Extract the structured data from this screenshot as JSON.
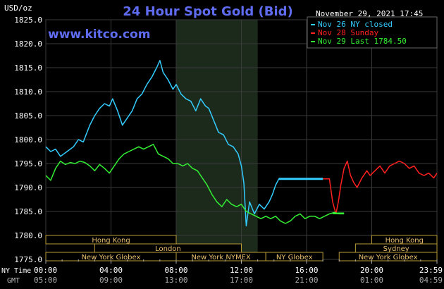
{
  "chart_data": {
    "type": "line",
    "title": "24 Hour Spot Gold (Bid)",
    "watermark": "www.kitco.com",
    "timestamp": "November 29, 2021 17:45",
    "ylabel": "USD/oz",
    "ylim": [
      1775.0,
      1825.0
    ],
    "y_ticks": [
      "1825.0",
      "1820.0",
      "1815.0",
      "1810.0",
      "1805.0",
      "1800.0",
      "1795.0",
      "1790.0",
      "1785.0",
      "1780.0",
      "1775.0"
    ],
    "x_row_labels": {
      "ny": "NY Time",
      "gmt": "GMT"
    },
    "x_ticks_ny": [
      "00:00",
      "04:00",
      "08:00",
      "12:00",
      "16:00",
      "20:00",
      "23:59"
    ],
    "x_ticks_gmt": [
      "05:00",
      "09:00",
      "13:00",
      "17:00",
      "21:00",
      "01:00",
      "04:59"
    ],
    "xlim_hours": [
      0,
      24
    ],
    "grid": true,
    "legend_position": "top-right",
    "shaded_session_hours": [
      8.0,
      13.0
    ],
    "series": [
      {
        "name": "Nov 26 NY closed",
        "color": "#33ccff",
        "points": [
          [
            0.0,
            1798.5
          ],
          [
            0.3,
            1797.5
          ],
          [
            0.6,
            1798.0
          ],
          [
            0.9,
            1796.5
          ],
          [
            1.3,
            1797.5
          ],
          [
            1.7,
            1798.5
          ],
          [
            2.0,
            1800.0
          ],
          [
            2.3,
            1799.5
          ],
          [
            2.7,
            1803.0
          ],
          [
            3.0,
            1805.0
          ],
          [
            3.3,
            1806.5
          ],
          [
            3.6,
            1807.5
          ],
          [
            3.9,
            1807.0
          ],
          [
            4.1,
            1808.5
          ],
          [
            4.4,
            1806.0
          ],
          [
            4.7,
            1803.0
          ],
          [
            5.0,
            1804.5
          ],
          [
            5.3,
            1806.0
          ],
          [
            5.6,
            1808.5
          ],
          [
            5.9,
            1809.5
          ],
          [
            6.2,
            1811.5
          ],
          [
            6.5,
            1813.0
          ],
          [
            6.8,
            1815.0
          ],
          [
            7.0,
            1816.5
          ],
          [
            7.2,
            1814.0
          ],
          [
            7.5,
            1812.5
          ],
          [
            7.8,
            1810.5
          ],
          [
            8.0,
            1811.5
          ],
          [
            8.3,
            1809.5
          ],
          [
            8.6,
            1808.5
          ],
          [
            8.9,
            1808.0
          ],
          [
            9.2,
            1806.0
          ],
          [
            9.5,
            1808.5
          ],
          [
            9.8,
            1807.0
          ],
          [
            10.0,
            1806.5
          ],
          [
            10.3,
            1804.0
          ],
          [
            10.6,
            1801.5
          ],
          [
            10.9,
            1801.0
          ],
          [
            11.2,
            1799.0
          ],
          [
            11.5,
            1798.5
          ],
          [
            11.8,
            1797.0
          ],
          [
            12.0,
            1794.5
          ],
          [
            12.15,
            1791.0
          ],
          [
            12.3,
            1782.0
          ],
          [
            12.5,
            1787.0
          ],
          [
            12.8,
            1784.5
          ],
          [
            13.1,
            1786.5
          ],
          [
            13.4,
            1785.5
          ],
          [
            13.7,
            1787.0
          ],
          [
            13.9,
            1788.5
          ],
          [
            14.1,
            1790.5
          ],
          [
            14.3,
            1791.8
          ],
          [
            17.0,
            1791.8
          ]
        ]
      },
      {
        "name": "Nov 28 Sunday",
        "color": "#ff2020",
        "points": [
          [
            17.0,
            1791.8
          ],
          [
            17.4,
            1791.8
          ],
          [
            17.6,
            1787.0
          ],
          [
            17.8,
            1784.5
          ],
          [
            17.95,
            1787.0
          ],
          [
            18.1,
            1790.5
          ],
          [
            18.3,
            1794.0
          ],
          [
            18.5,
            1795.5
          ],
          [
            18.7,
            1792.5
          ],
          [
            18.9,
            1791.0
          ],
          [
            19.1,
            1790.0
          ],
          [
            19.4,
            1792.0
          ],
          [
            19.7,
            1793.5
          ],
          [
            19.9,
            1792.5
          ],
          [
            20.2,
            1793.5
          ],
          [
            20.5,
            1794.5
          ],
          [
            20.8,
            1793.0
          ],
          [
            21.1,
            1794.5
          ],
          [
            21.4,
            1795.0
          ],
          [
            21.7,
            1795.5
          ],
          [
            22.0,
            1795.0
          ],
          [
            22.3,
            1794.0
          ],
          [
            22.6,
            1794.5
          ],
          [
            22.9,
            1793.0
          ],
          [
            23.2,
            1792.5
          ],
          [
            23.5,
            1793.0
          ],
          [
            23.8,
            1792.0
          ],
          [
            24.0,
            1793.0
          ]
        ]
      },
      {
        "name": "Nov 29 Last 1784.50",
        "color": "#33ee33",
        "points": [
          [
            0.0,
            1792.5
          ],
          [
            0.3,
            1791.5
          ],
          [
            0.6,
            1794.0
          ],
          [
            0.9,
            1795.5
          ],
          [
            1.2,
            1794.8
          ],
          [
            1.5,
            1795.2
          ],
          [
            1.8,
            1795.0
          ],
          [
            2.1,
            1795.5
          ],
          [
            2.4,
            1795.2
          ],
          [
            2.7,
            1794.5
          ],
          [
            3.0,
            1793.5
          ],
          [
            3.3,
            1794.8
          ],
          [
            3.6,
            1794.0
          ],
          [
            3.9,
            1793.0
          ],
          [
            4.2,
            1794.5
          ],
          [
            4.5,
            1796.0
          ],
          [
            4.8,
            1797.0
          ],
          [
            5.1,
            1797.5
          ],
          [
            5.4,
            1798.0
          ],
          [
            5.7,
            1798.5
          ],
          [
            6.0,
            1798.0
          ],
          [
            6.3,
            1798.5
          ],
          [
            6.6,
            1799.0
          ],
          [
            6.9,
            1797.0
          ],
          [
            7.2,
            1796.5
          ],
          [
            7.5,
            1796.0
          ],
          [
            7.8,
            1795.0
          ],
          [
            8.1,
            1795.0
          ],
          [
            8.4,
            1794.5
          ],
          [
            8.7,
            1795.0
          ],
          [
            9.0,
            1794.0
          ],
          [
            9.3,
            1793.5
          ],
          [
            9.6,
            1792.0
          ],
          [
            9.9,
            1790.5
          ],
          [
            10.2,
            1788.5
          ],
          [
            10.5,
            1787.0
          ],
          [
            10.8,
            1786.0
          ],
          [
            11.1,
            1787.5
          ],
          [
            11.4,
            1786.5
          ],
          [
            11.7,
            1786.0
          ],
          [
            12.0,
            1786.5
          ],
          [
            12.3,
            1785.0
          ],
          [
            12.6,
            1784.5
          ],
          [
            12.9,
            1784.0
          ],
          [
            13.2,
            1783.5
          ],
          [
            13.5,
            1784.0
          ],
          [
            13.8,
            1783.5
          ],
          [
            14.1,
            1784.0
          ],
          [
            14.4,
            1783.0
          ],
          [
            14.7,
            1782.5
          ],
          [
            15.0,
            1783.0
          ],
          [
            15.3,
            1784.0
          ],
          [
            15.6,
            1784.5
          ],
          [
            15.9,
            1783.5
          ],
          [
            16.2,
            1784.0
          ],
          [
            16.5,
            1784.0
          ],
          [
            16.8,
            1783.5
          ],
          [
            17.1,
            1784.0
          ],
          [
            17.4,
            1784.5
          ],
          [
            17.7,
            1784.8
          ],
          [
            18.0,
            1784.5
          ],
          [
            18.3,
            1784.5
          ]
        ]
      }
    ],
    "sessions": [
      {
        "label": "Hong Kong",
        "start_hour": 0.0,
        "end_hour": 8.0,
        "row": 0
      },
      {
        "label": "Hong Kong",
        "start_hour": 20.0,
        "end_hour": 24.0,
        "row": 0
      },
      {
        "label": "London",
        "start_hour": 3.0,
        "end_hour": 12.0,
        "row": 1
      },
      {
        "label": "Sydney",
        "start_hour": 19.0,
        "end_hour": 24.0,
        "row": 1
      },
      {
        "label": "New York Globex",
        "start_hour": 0.0,
        "end_hour": 8.0,
        "row": 2
      },
      {
        "label": "New York NYMEX",
        "start_hour": 8.0,
        "end_hour": 13.5,
        "row": 2
      },
      {
        "label": "NY Globex",
        "start_hour": 13.5,
        "end_hour": 17.0,
        "row": 2
      },
      {
        "label": "New York Globex",
        "start_hour": 18.0,
        "end_hour": 24.0,
        "row": 2
      }
    ]
  }
}
